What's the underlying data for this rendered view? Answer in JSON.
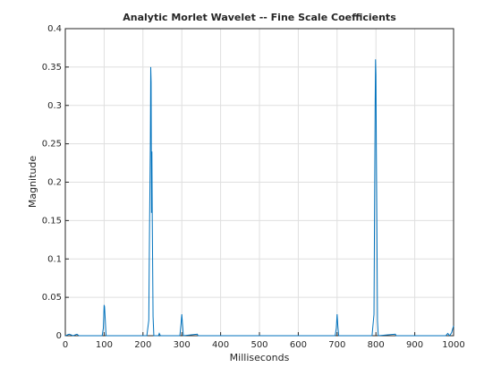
{
  "chart_data": {
    "type": "line",
    "title": "Analytic Morlet Wavelet -- Fine Scale Coefficients",
    "xlabel": "Milliseconds",
    "ylabel": "Magnitude",
    "x": [
      0,
      10,
      20,
      30,
      35,
      95,
      98,
      100,
      101,
      103,
      105,
      210,
      215,
      217,
      219,
      220,
      221,
      222,
      223,
      224,
      226,
      228,
      240,
      242,
      245,
      295,
      298,
      300,
      302,
      304,
      340,
      342,
      695,
      698,
      700,
      702,
      704,
      790,
      795,
      798,
      799,
      800,
      801,
      802,
      804,
      806,
      850,
      852,
      980,
      985,
      990,
      995,
      1000
    ],
    "values": [
      0,
      0.002,
      0,
      0.002,
      0,
      0,
      0.01,
      0.04,
      0.038,
      0.02,
      0,
      0,
      0.02,
      0.145,
      0.25,
      0.35,
      0.33,
      0.16,
      0.24,
      0.15,
      0.025,
      0,
      0,
      0.003,
      0,
      0,
      0.015,
      0.028,
      0.014,
      0,
      0.002,
      0,
      0,
      0.01,
      0.028,
      0.012,
      0,
      0,
      0.028,
      0.3,
      0.36,
      0.34,
      0.25,
      0.18,
      0.02,
      0,
      0.002,
      0,
      0,
      0.003,
      0,
      0.004,
      0.013
    ],
    "color": "#0072bd",
    "xlim": [
      0,
      1000
    ],
    "xticks": [
      0,
      100,
      200,
      300,
      400,
      500,
      600,
      700,
      800,
      900,
      1000
    ],
    "ylim": [
      0,
      0.4
    ],
    "yticks": [
      0,
      0.05,
      0.1,
      0.15,
      0.2,
      0.25,
      0.3,
      0.35,
      0.4
    ],
    "grid": true
  }
}
